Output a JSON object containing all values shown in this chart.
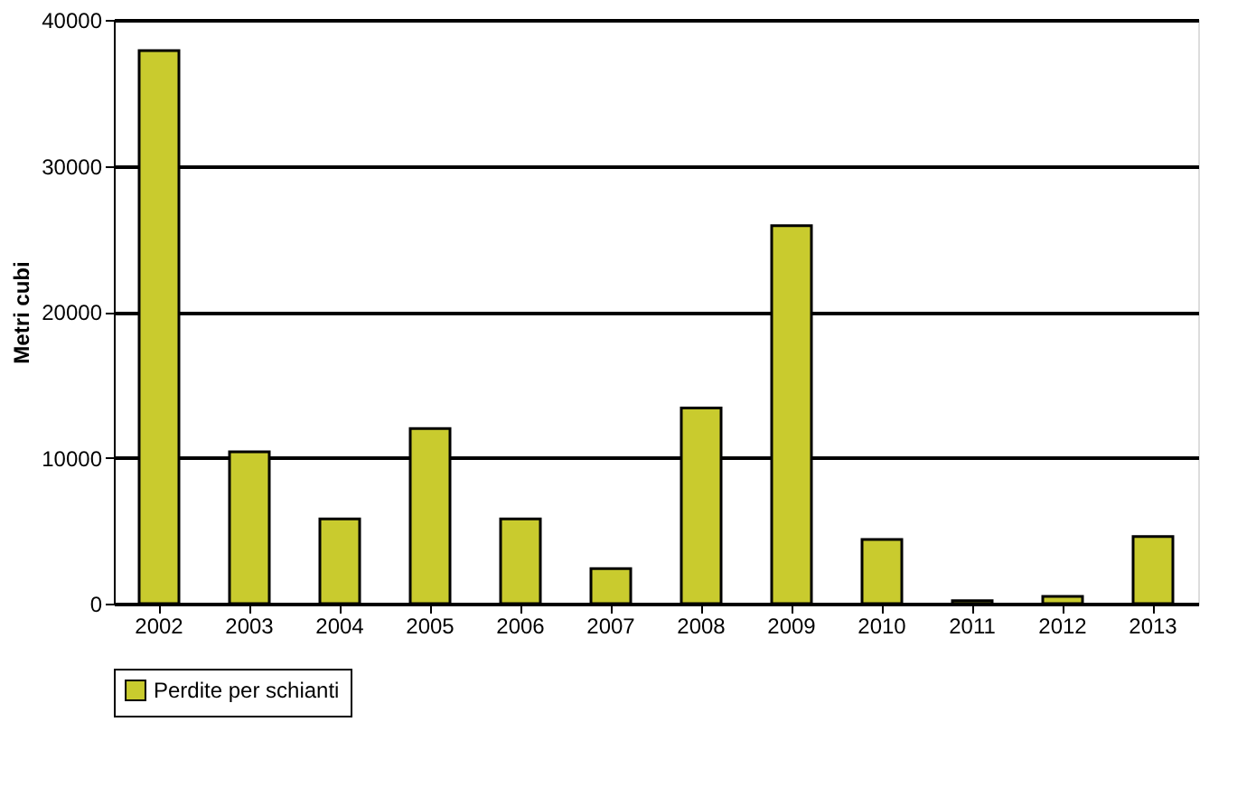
{
  "chart_data": {
    "type": "bar",
    "ylabel": "Metri cubi",
    "categories": [
      "2002",
      "2003",
      "2004",
      "2005",
      "2006",
      "2007",
      "2008",
      "2009",
      "2010",
      "2011",
      "2012",
      "2013"
    ],
    "series": [
      {
        "name": "Perdite per schianti",
        "color": "#c9cb2e",
        "values": [
          37900,
          10400,
          5800,
          12000,
          5800,
          2400,
          13400,
          25900,
          4400,
          200,
          500,
          4600
        ]
      }
    ],
    "ylim": [
      0,
      40000
    ],
    "yticks": [
      0,
      10000,
      20000,
      30000,
      40000
    ],
    "grid": "y",
    "legend": "bottom"
  }
}
